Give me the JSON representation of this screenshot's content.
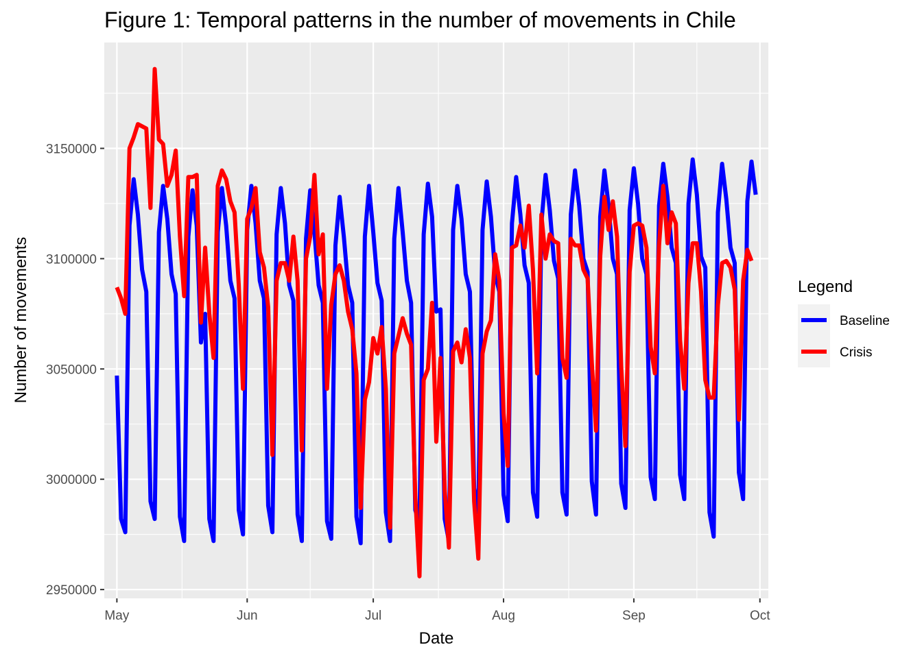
{
  "chart_data": {
    "type": "line",
    "title": "Figure 1: Temporal patterns in the number of movements in Chile",
    "xlabel": "Date",
    "ylabel": "Number of movements",
    "x_ticks": [
      "May",
      "Jun",
      "Jul",
      "Aug",
      "Sep",
      "Oct"
    ],
    "y_ticks": [
      "2950000",
      "3000000",
      "3050000",
      "3100000",
      "3150000"
    ],
    "ylim": [
      2946000,
      3198000
    ],
    "xlim": [
      "2020-04-28",
      "2020-10-03"
    ],
    "grid": true,
    "legend": {
      "title": "Legend",
      "position": "right"
    },
    "x_start": "2020-05-01",
    "series": [
      {
        "name": "Baseline",
        "color": "#0000ff",
        "values": [
          3047000,
          2982000,
          2976000,
          3115000,
          3136000,
          3120000,
          3095000,
          3085000,
          2990000,
          2982000,
          3112000,
          3133000,
          3118000,
          3093000,
          3084000,
          2983000,
          2972000,
          3110000,
          3131000,
          3115000,
          3062000,
          3075000,
          2982000,
          2972000,
          3112000,
          3132000,
          3115000,
          3090000,
          3082000,
          2986000,
          2975000,
          3113000,
          3133000,
          3116000,
          3090000,
          3082000,
          2988000,
          2976000,
          3111000,
          3132000,
          3116000,
          3088000,
          3081000,
          2984000,
          2972000,
          3109000,
          3131000,
          3112000,
          3088000,
          3080000,
          2981000,
          2973000,
          3106000,
          3128000,
          3110000,
          3088000,
          3080000,
          2983000,
          2971000,
          3110000,
          3133000,
          3112000,
          3089000,
          3081000,
          2985000,
          2972000,
          3109000,
          3132000,
          3112000,
          3090000,
          3080000,
          2986000,
          2980000,
          3111000,
          3134000,
          3119000,
          3076000,
          3077000,
          2982000,
          2972000,
          3113000,
          3133000,
          3118000,
          3093000,
          3085000,
          2996000,
          2985000,
          3113000,
          3135000,
          3119000,
          3093000,
          3085000,
          2993000,
          2981000,
          3116000,
          3137000,
          3120000,
          3097000,
          3089000,
          2994000,
          2983000,
          3116000,
          3138000,
          3122000,
          3099000,
          3091000,
          2994000,
          2984000,
          3120000,
          3140000,
          3124000,
          3100000,
          3094000,
          2999000,
          2984000,
          3119000,
          3140000,
          3124000,
          3100000,
          3093000,
          2998000,
          2987000,
          3122000,
          3141000,
          3125000,
          3100000,
          3093000,
          3001000,
          2991000,
          3124000,
          3143000,
          3128000,
          3105000,
          3098000,
          3002000,
          2991000,
          3125000,
          3145000,
          3129000,
          3101000,
          3096000,
          2985000,
          2974000,
          3121000,
          3143000,
          3127000,
          3105000,
          3098000,
          3003000,
          2991000,
          3126000,
          3144000,
          3129000
        ]
      },
      {
        "name": "Crisis",
        "color": "#ff0000",
        "values": [
          3087000,
          3082000,
          3075000,
          3150000,
          3155000,
          3161000,
          3160000,
          3159000,
          3123000,
          3186000,
          3154000,
          3152000,
          3133000,
          3138000,
          3149000,
          3110000,
          3083000,
          3137000,
          3137000,
          3138000,
          3071000,
          3105000,
          3075000,
          3055000,
          3133000,
          3140000,
          3136000,
          3126000,
          3121000,
          3088000,
          3041000,
          3118000,
          3123000,
          3132000,
          3103000,
          3096000,
          3078000,
          3011000,
          3090000,
          3098000,
          3098000,
          3090000,
          3110000,
          3090000,
          3013000,
          3100000,
          3110000,
          3138000,
          3102000,
          3111000,
          3041000,
          3079000,
          3093000,
          3097000,
          3090000,
          3076000,
          3068000,
          3048000,
          2987000,
          3036000,
          3044000,
          3064000,
          3057000,
          3069000,
          3041000,
          2978000,
          3057000,
          3065000,
          3073000,
          3066000,
          3061000,
          2992000,
          2956000,
          3045000,
          3050000,
          3080000,
          3017000,
          3055000,
          2995000,
          2969000,
          3058000,
          3062000,
          3053000,
          3068000,
          3055000,
          2990000,
          2964000,
          3057000,
          3067000,
          3072000,
          3102000,
          3090000,
          3030000,
          3006000,
          3105000,
          3106000,
          3115000,
          3105000,
          3124000,
          3095000,
          3048000,
          3120000,
          3100000,
          3111000,
          3108000,
          3107000,
          3055000,
          3046000,
          3109000,
          3106000,
          3106000,
          3095000,
          3091000,
          3053000,
          3022000,
          3101000,
          3128000,
          3113000,
          3126000,
          3110000,
          3051000,
          3015000,
          3094000,
          3115000,
          3116000,
          3115000,
          3105000,
          3060000,
          3048000,
          3106000,
          3133000,
          3107000,
          3121000,
          3116000,
          3063000,
          3041000,
          3089000,
          3107000,
          3107000,
          3085000,
          3045000,
          3037000,
          3037000,
          3079000,
          3098000,
          3099000,
          3096000,
          3086000,
          3027000,
          3090000,
          3104000,
          3099000
        ]
      }
    ]
  }
}
